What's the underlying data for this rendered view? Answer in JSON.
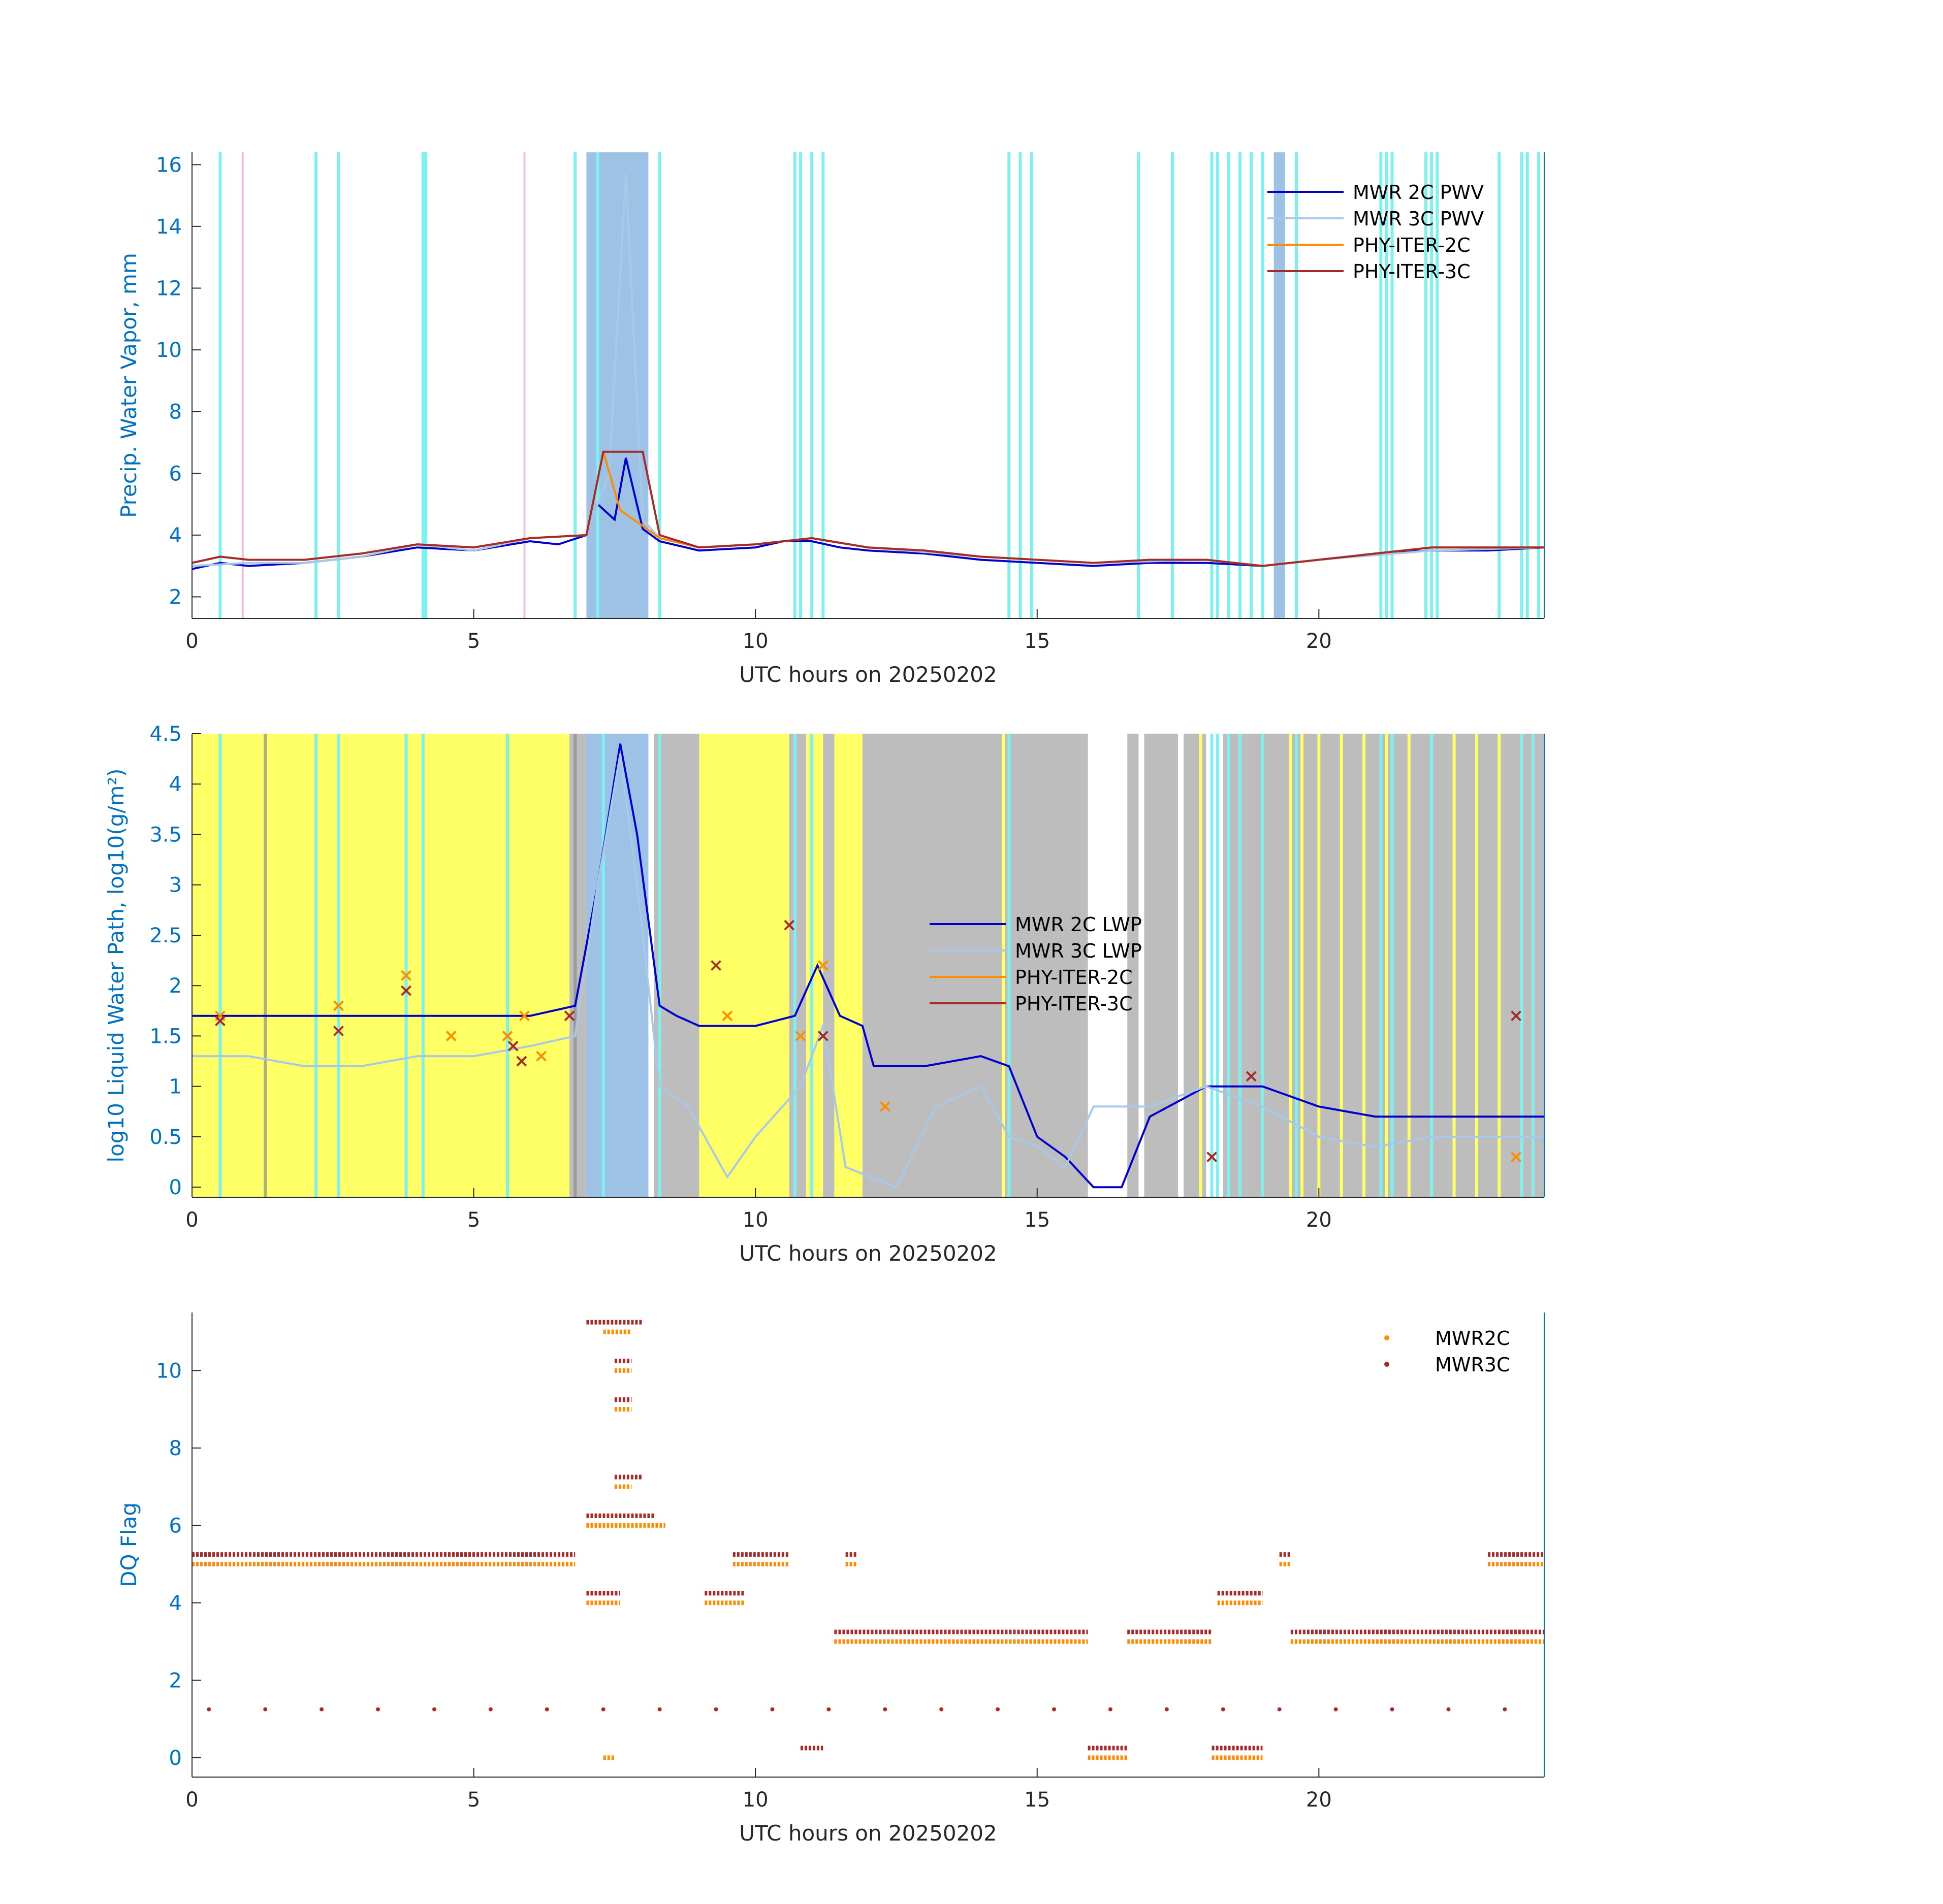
{
  "figure": {
    "background": "#ffffff"
  },
  "colors": {
    "axis_text": "#0072bd",
    "mwr2c": "#0000cd",
    "mwr3c": "#a8c8e8",
    "phy2c": "#ff8c00",
    "phy3c": "#a52a2a",
    "shade_yellow": "#ffff66",
    "shade_gray": "#bdbdbd",
    "shade_blue": "#9ec2e6",
    "shade_cyan": "#7ff0f0",
    "shade_pink": "#f0c0e0"
  },
  "chart_data": [
    {
      "type": "line",
      "xlabel": "UTC hours on 20250202",
      "ylabel": "Precip. Water Vapor, mm",
      "xlim": [
        0,
        24
      ],
      "ylim": [
        1.3,
        16.4
      ],
      "xticks": [
        0,
        5,
        10,
        15,
        20
      ],
      "xtick_labels": [
        "0",
        "5",
        "10",
        "15",
        "20"
      ],
      "yticks": [
        2,
        4,
        6,
        8,
        10,
        12,
        14,
        16
      ],
      "ytick_labels": [
        "2",
        "4",
        "6",
        "8",
        "10",
        "12",
        "14",
        "16"
      ],
      "legend": [
        "MWR 2C PWV",
        "MWR 3C PWV",
        "PHY-ITER-2C",
        "PHY-ITER-3C"
      ],
      "legend_position": "top-right",
      "series": [
        {
          "name": "MWR 2C PWV",
          "color": "#0000cd",
          "x": [
            0,
            0.5,
            1,
            2,
            3,
            4,
            5,
            6,
            6.5,
            7,
            7.2,
            7.5,
            7.7,
            8,
            8.3,
            9,
            10,
            10.5,
            11,
            11.5,
            12,
            13,
            14,
            15,
            16,
            17,
            18,
            19,
            20,
            21,
            22,
            23,
            24
          ],
          "y": [
            2.9,
            3.1,
            3.0,
            3.1,
            3.3,
            3.6,
            3.5,
            3.8,
            3.7,
            4.0,
            5.0,
            4.5,
            6.5,
            4.2,
            3.8,
            3.5,
            3.6,
            3.8,
            3.8,
            3.6,
            3.5,
            3.4,
            3.2,
            3.1,
            3.0,
            3.1,
            3.1,
            3.0,
            3.2,
            3.4,
            3.5,
            3.5,
            3.6
          ]
        },
        {
          "name": "MWR 3C PWV",
          "color": "#a8c8e8",
          "x": [
            0,
            1,
            2,
            3,
            4,
            5,
            6,
            7,
            7.4,
            7.7,
            8,
            8.3,
            9,
            10,
            11,
            12,
            14,
            16,
            18,
            19,
            20,
            22,
            24
          ],
          "y": [
            3.0,
            3.1,
            3.1,
            3.3,
            3.7,
            3.5,
            3.9,
            4.0,
            6.0,
            15.7,
            4.5,
            3.9,
            3.6,
            3.7,
            3.9,
            3.6,
            3.3,
            3.1,
            3.2,
            3.0,
            3.2,
            3.5,
            3.6
          ]
        },
        {
          "name": "PHY-ITER-2C",
          "color": "#ff8c00",
          "x": [
            0,
            0.5,
            1,
            2,
            3,
            4,
            5,
            6,
            7,
            7.3,
            7.6,
            8,
            8.3,
            9,
            10,
            11,
            12,
            13,
            14,
            15,
            16,
            17,
            18,
            19,
            20,
            21,
            22,
            23,
            24
          ],
          "y": [
            3.1,
            3.3,
            3.2,
            3.2,
            3.4,
            3.7,
            3.6,
            3.9,
            4.0,
            6.7,
            4.8,
            4.3,
            3.9,
            3.6,
            3.7,
            3.9,
            3.6,
            3.5,
            3.3,
            3.2,
            3.1,
            3.2,
            3.2,
            3.0,
            3.2,
            3.4,
            3.6,
            3.6,
            3.6
          ]
        },
        {
          "name": "PHY-ITER-3C",
          "color": "#a52a2a",
          "x": [
            0,
            0.5,
            1,
            2,
            3,
            4,
            5,
            6,
            7,
            7.3,
            7.6,
            8.0,
            8.3,
            9,
            10,
            11,
            12,
            13,
            14,
            15,
            16,
            17,
            18,
            19,
            20,
            21,
            22,
            23,
            24
          ],
          "y": [
            3.1,
            3.3,
            3.2,
            3.2,
            3.4,
            3.7,
            3.6,
            3.9,
            4.0,
            6.7,
            6.7,
            6.7,
            4.0,
            3.6,
            3.7,
            3.9,
            3.6,
            3.5,
            3.3,
            3.2,
            3.1,
            3.2,
            3.2,
            3.0,
            3.2,
            3.4,
            3.6,
            3.6,
            3.6
          ]
        }
      ]
    },
    {
      "type": "line",
      "xlabel": "UTC hours on 20250202",
      "ylabel": "log10 Liquid Water Path, log10(g/m²)",
      "xlim": [
        0,
        24
      ],
      "ylim": [
        -0.1,
        4.5
      ],
      "xticks": [
        0,
        5,
        10,
        15,
        20
      ],
      "xtick_labels": [
        "0",
        "5",
        "10",
        "15",
        "20"
      ],
      "yticks": [
        0,
        0.5,
        1,
        1.5,
        2,
        2.5,
        3,
        3.5,
        4,
        4.5
      ],
      "ytick_labels": [
        "0",
        "0.5",
        "1",
        "1.5",
        "2",
        "2.5",
        "3",
        "3.5",
        "4",
        "4.5"
      ],
      "legend": [
        "MWR 2C LWP",
        "MWR 3C LWP",
        "PHY-ITER-2C",
        "PHY-ITER-3C"
      ],
      "legend_position": "center",
      "series": [
        {
          "name": "MWR 2C LWP",
          "color": "#0000cd",
          "x": [
            0,
            1,
            2,
            3,
            4,
            5,
            6,
            6.8,
            7.2,
            7.6,
            7.9,
            8.3,
            8.6,
            9.0,
            9.5,
            10,
            10.7,
            11.1,
            11.5,
            11.9,
            12.1,
            13,
            14,
            14.5,
            15,
            15.5,
            16,
            16.5,
            17,
            18,
            19,
            20,
            21,
            22,
            23,
            24
          ],
          "y": [
            1.7,
            1.7,
            1.7,
            1.7,
            1.7,
            1.7,
            1.7,
            1.8,
            3.0,
            4.4,
            3.5,
            1.8,
            1.7,
            1.6,
            1.6,
            1.6,
            1.7,
            2.2,
            1.7,
            1.6,
            1.2,
            1.2,
            1.3,
            1.2,
            0.5,
            0.3,
            0.0,
            0.0,
            0.7,
            1.0,
            1.0,
            0.8,
            0.7,
            0.7,
            0.7,
            0.7
          ]
        },
        {
          "name": "MWR 3C LWP",
          "color": "#a8c8e8",
          "x": [
            0,
            1,
            2,
            3,
            4,
            5,
            6,
            6.8,
            7.2,
            7.6,
            7.9,
            8.3,
            8.8,
            9.5,
            10,
            10.8,
            11.2,
            11.6,
            12.5,
            13.2,
            14,
            14.5,
            15,
            15.5,
            16,
            17,
            18,
            19,
            20,
            21,
            22,
            23,
            24
          ],
          "y": [
            1.3,
            1.3,
            1.2,
            1.2,
            1.3,
            1.3,
            1.4,
            1.5,
            3.0,
            4.3,
            3.0,
            1.0,
            0.8,
            0.1,
            0.5,
            1.0,
            1.6,
            0.2,
            0.0,
            0.8,
            1.0,
            0.5,
            0.4,
            0.2,
            0.8,
            0.8,
            1.0,
            0.8,
            0.5,
            0.4,
            0.5,
            0.5,
            0.5
          ]
        },
        {
          "name": "PHY-ITER-2C",
          "color": "#ff8c00",
          "x": [
            0.5,
            2.6,
            3.8,
            4.6,
            5.6,
            5.9,
            6.2,
            6.7,
            9.5,
            10.8,
            11.2,
            12.3,
            18.1,
            23.5
          ],
          "y": [
            1.7,
            1.8,
            2.1,
            1.5,
            1.5,
            1.7,
            1.3,
            1.7,
            1.7,
            1.5,
            2.2,
            0.8,
            0.3,
            0.3
          ]
        },
        {
          "name": "PHY-ITER-3C",
          "color": "#a52a2a",
          "x": [
            0.5,
            2.6,
            3.8,
            5.7,
            5.85,
            6.7,
            9.3,
            10.6,
            11.2,
            18.1,
            18.8,
            23.5
          ],
          "y": [
            1.65,
            1.55,
            1.95,
            1.4,
            1.25,
            1.7,
            2.2,
            2.6,
            1.5,
            0.3,
            1.1,
            1.7
          ]
        }
      ]
    },
    {
      "type": "scatter",
      "xlabel": "UTC hours on 20250202",
      "ylabel": "DQ Flag",
      "xlim": [
        0,
        24
      ],
      "ylim": [
        -0.5,
        11.5
      ],
      "xticks": [
        0,
        5,
        10,
        15,
        20
      ],
      "xtick_labels": [
        "0",
        "5",
        "10",
        "15",
        "20"
      ],
      "yticks": [
        0,
        2,
        4,
        6,
        8,
        10
      ],
      "ytick_labels": [
        "0",
        "2",
        "4",
        "6",
        "8",
        "10"
      ],
      "legend": [
        "MWR2C",
        "MWR3C"
      ],
      "legend_position": "top-right",
      "series": [
        {
          "name": "MWR2C",
          "color": "#ff8c00",
          "segments": [
            {
              "x0": 0.0,
              "x1": 6.8,
              "y": 5
            },
            {
              "x0": 9.6,
              "x1": 10.6,
              "y": 5
            },
            {
              "x0": 11.6,
              "x1": 11.8,
              "y": 5
            },
            {
              "x0": 19.3,
              "x1": 19.5,
              "y": 5
            },
            {
              "x0": 23.0,
              "x1": 24.0,
              "y": 5
            },
            {
              "x0": 11.4,
              "x1": 15.9,
              "y": 3
            },
            {
              "x0": 16.6,
              "x1": 18.1,
              "y": 3
            },
            {
              "x0": 19.5,
              "x1": 24.0,
              "y": 3
            },
            {
              "x0": 7.0,
              "x1": 8.4,
              "y": 6
            },
            {
              "x0": 7.0,
              "x1": 7.6,
              "y": 4
            },
            {
              "x0": 9.1,
              "x1": 9.8,
              "y": 4
            },
            {
              "x0": 18.2,
              "x1": 19.0,
              "y": 4
            },
            {
              "x0": 15.9,
              "x1": 16.6,
              "y": 0
            },
            {
              "x0": 18.1,
              "x1": 19.0,
              "y": 0
            },
            {
              "x0": 7.3,
              "x1": 7.8,
              "y": 11
            },
            {
              "x0": 7.5,
              "x1": 7.8,
              "y": 10
            },
            {
              "x0": 7.5,
              "x1": 7.8,
              "y": 9
            },
            {
              "x0": 7.5,
              "x1": 7.8,
              "y": 7
            },
            {
              "x0": 7.3,
              "x1": 7.5,
              "y": 0
            }
          ]
        },
        {
          "name": "MWR3C",
          "color": "#a52a2a",
          "segments": [
            {
              "x0": 0.0,
              "x1": 6.8,
              "y": 5.25
            },
            {
              "x0": 9.6,
              "x1": 10.6,
              "y": 5.25
            },
            {
              "x0": 11.6,
              "x1": 11.8,
              "y": 5.25
            },
            {
              "x0": 19.3,
              "x1": 19.5,
              "y": 5.25
            },
            {
              "x0": 23.0,
              "x1": 24.0,
              "y": 5.25
            },
            {
              "x0": 11.4,
              "x1": 15.9,
              "y": 3.25
            },
            {
              "x0": 16.6,
              "x1": 18.1,
              "y": 3.25
            },
            {
              "x0": 19.5,
              "x1": 24.0,
              "y": 3.25
            },
            {
              "x0": 7.0,
              "x1": 8.2,
              "y": 6.25
            },
            {
              "x0": 7.0,
              "x1": 7.6,
              "y": 4.25
            },
            {
              "x0": 9.1,
              "x1": 9.8,
              "y": 4.25
            },
            {
              "x0": 18.2,
              "x1": 19.0,
              "y": 4.25
            },
            {
              "x0": 15.9,
              "x1": 16.6,
              "y": 0.25
            },
            {
              "x0": 18.1,
              "x1": 19.0,
              "y": 0.25
            },
            {
              "x0": 7.0,
              "x1": 8.0,
              "y": 11.25
            },
            {
              "x0": 7.5,
              "x1": 7.8,
              "y": 10.25
            },
            {
              "x0": 7.5,
              "x1": 7.8,
              "y": 9.25
            },
            {
              "x0": 7.5,
              "x1": 8.0,
              "y": 7.25
            },
            {
              "x0": 10.8,
              "x1": 11.2,
              "y": 0.25
            }
          ],
          "points_x": [
            0.3,
            1.3,
            2.3,
            3.3,
            4.3,
            5.3,
            6.3,
            7.3,
            8.3,
            9.3,
            10.3,
            11.3,
            12.3,
            13.3,
            14.3,
            15.3,
            16.3,
            17.3,
            18.3,
            19.3,
            20.3,
            21.3,
            22.3,
            23.3
          ],
          "points_y": [
            1.25,
            1.25,
            1.25,
            1.25,
            1.25,
            1.25,
            1.25,
            1.25,
            1.25,
            1.25,
            1.25,
            1.25,
            1.25,
            1.25,
            1.25,
            1.25,
            1.25,
            1.25,
            1.25,
            1.25,
            1.25,
            1.25,
            1.25,
            1.25
          ]
        }
      ]
    }
  ]
}
